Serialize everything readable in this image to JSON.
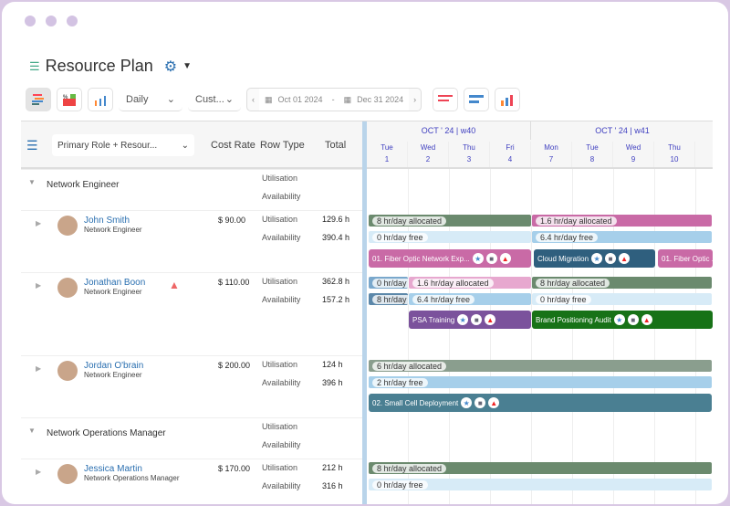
{
  "window": {
    "title": "Resource Plan"
  },
  "toolbar": {
    "view_select": "Daily",
    "range_select": "Cust...",
    "date_from": "Oct 01 2024",
    "date_sep": "-",
    "date_to": "Dec 31 2024"
  },
  "header": {
    "group_select": "Primary Role + Resour...",
    "cols": [
      "Cost Rate",
      "Row Type",
      "Total"
    ],
    "weeks": [
      {
        "label": "OCT ' 24",
        "week": "w40"
      },
      {
        "label": "OCT ' 24",
        "week": "w41"
      }
    ],
    "days": [
      {
        "d": "Tue",
        "n": "1"
      },
      {
        "d": "Wed",
        "n": "2"
      },
      {
        "d": "Thu",
        "n": "3"
      },
      {
        "d": "Fri",
        "n": "4"
      },
      {
        "d": "Mon",
        "n": "7"
      },
      {
        "d": "Tue",
        "n": "8"
      },
      {
        "d": "Wed",
        "n": "9"
      },
      {
        "d": "Thu",
        "n": "10"
      }
    ]
  },
  "rows": {
    "util": "Utilisation",
    "avail": "Availability"
  },
  "groups": [
    {
      "name": "Network Engineer"
    },
    {
      "name": "Network Operations Manager"
    }
  ],
  "people": [
    {
      "name": "John Smith",
      "role": "Network Engineer",
      "rate": "$ 90.00",
      "util": "129.6 h",
      "avail": "390.4 h"
    },
    {
      "name": "Jonathan Boon",
      "role": "Network Engineer",
      "rate": "$ 110.00",
      "util": "362.8 h",
      "avail": "157.2 h"
    },
    {
      "name": "Jordan O'brain",
      "role": "Network Engineer",
      "rate": "$ 200.00",
      "util": "124 h",
      "avail": "396 h"
    },
    {
      "name": "Jessica Martin",
      "role": "Network Operations Manager",
      "rate": "$ 170.00",
      "util": "212 h",
      "avail": "316 h"
    }
  ],
  "bars": {
    "js_a1": "8 hr/day allocated",
    "js_a2": "1.6 hr/day allocated",
    "js_f1": "0 hr/day free",
    "js_f2": "6.4 hr/day free",
    "js_t1": "01. Fiber Optic Network Exp...",
    "js_t2": "Cloud Migration",
    "js_t3": "01. Fiber Optic ...",
    "jb_a0": "0 hr/day",
    "jb_a1": "1.6 hr/day allocated",
    "jb_a2": "8 hr/day allocated",
    "jb_f0": "8 hr/day",
    "jb_f1": "6.4 hr/day free",
    "jb_f2": "0 hr/day free",
    "jb_t1": "PSA Training",
    "jb_t2": "Brand Positioning Audit",
    "jo_a": "6 hr/day allocated",
    "jo_f": "2 hr/day free",
    "jo_t": "02. Small Cell Deployment",
    "jm_a": "8 hr/day allocated",
    "jm_f": "0 hr/day free"
  },
  "colors": {
    "green": "#6b8a6e",
    "pink": "#c96aa6",
    "light": "#d7ebf7",
    "blue": "#a6cfea",
    "navy": "#2f5f7e",
    "purple": "#7b529c",
    "dkgreen": "#177217",
    "teal": "#4a7f92"
  }
}
